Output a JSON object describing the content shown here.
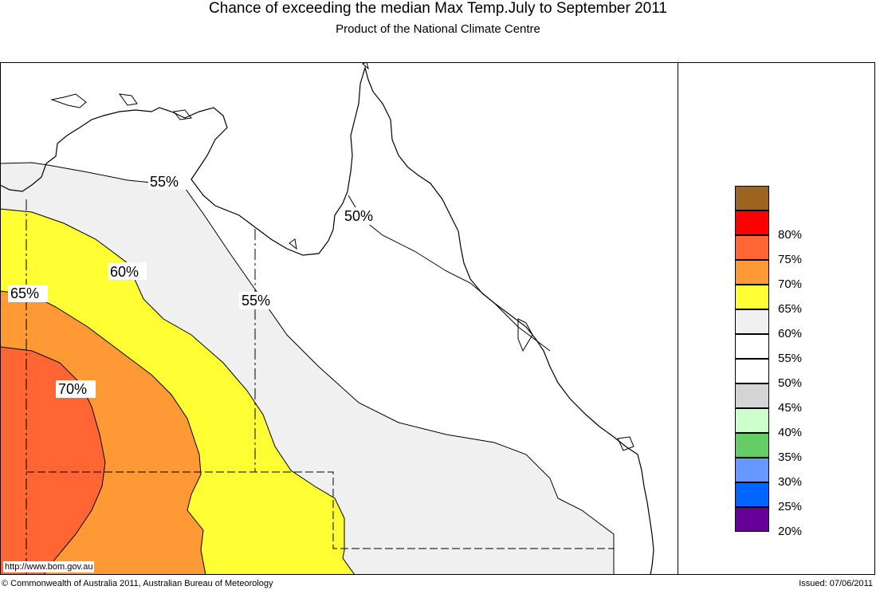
{
  "title": "Chance of exceeding the median Max Temp.July to September 2011",
  "subtitle": "Product of the National Climate Centre",
  "contour_labels": [
    "55%",
    "50%",
    "60%",
    "55%",
    "65%",
    "70%"
  ],
  "legend": [
    {
      "label": "",
      "color": "#9c6420"
    },
    {
      "label": "80%",
      "color": "#ff0000"
    },
    {
      "label": "75%",
      "color": "#ff6633"
    },
    {
      "label": "70%",
      "color": "#ff9933"
    },
    {
      "label": "65%",
      "color": "#ffff33"
    },
    {
      "label": "60%",
      "color": "#f0f0f0"
    },
    {
      "label": "55%",
      "color": "#ffffff"
    },
    {
      "label": "50%",
      "color": "#ffffff"
    },
    {
      "label": "45%",
      "color": "#d4d4d4"
    },
    {
      "label": "40%",
      "color": "#ccffcc"
    },
    {
      "label": "35%",
      "color": "#66cc66"
    },
    {
      "label": "30%",
      "color": "#6699ff"
    },
    {
      "label": "25%",
      "color": "#0066ff"
    },
    {
      "label": "20%",
      "color": "#660099"
    }
  ],
  "url_text": "http://www.bom.gov.au",
  "copyright": "© Commonwealth of Australia 2011, Australian Bureau of Meteorology",
  "issued": "Issued: 07/06/2011"
}
